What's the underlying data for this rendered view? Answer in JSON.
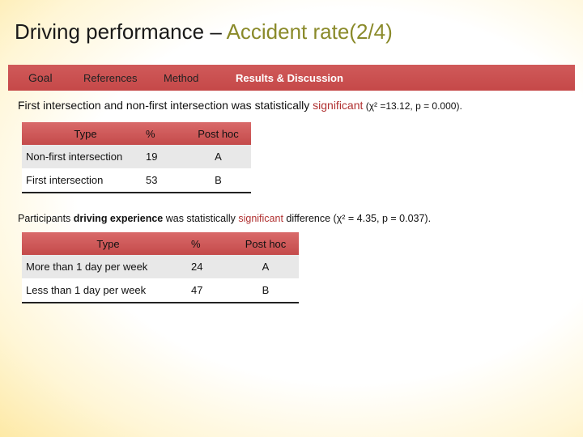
{
  "header": {
    "title_main": "Driving performance – ",
    "title_accent": "Accident rate(2/4)"
  },
  "nav": {
    "goal": "Goal",
    "references": "References",
    "method": "Method",
    "results": "Results & Discussion"
  },
  "section1": {
    "text_before": "First intersection and non-first intersection was statistically ",
    "highlight": "significant",
    "stats": " (χ² =13.12, p = 0.000).",
    "table": {
      "headers": [
        "Type",
        "%",
        "Post hoc"
      ],
      "rows": [
        [
          "Non-first intersection",
          "19",
          "A"
        ],
        [
          "First intersection",
          "53",
          "B"
        ]
      ]
    }
  },
  "section2": {
    "text_before": "Participants ",
    "bold": "driving experience",
    "text_mid": " was statistically ",
    "highlight": "significant",
    "text_after": " difference (χ² = 4.35, p = 0.037).",
    "table": {
      "headers": [
        "Type",
        "%",
        "Post hoc"
      ],
      "rows": [
        [
          "More than 1 day per week",
          "24",
          "A"
        ],
        [
          "Less than 1 day per week",
          "47",
          "B"
        ]
      ]
    }
  },
  "colors": {
    "nav_bar": "#c54848",
    "significant": "#b03030",
    "title_accent": "#8a8a2a"
  }
}
